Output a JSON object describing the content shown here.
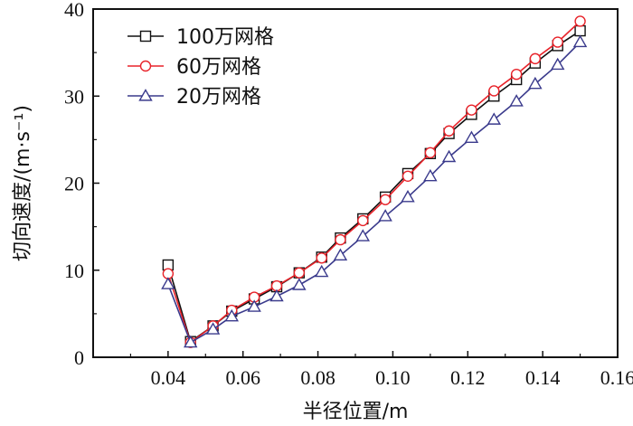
{
  "chart_data": {
    "type": "line",
    "xlabel": "半径位置/m",
    "ylabel": "切向速度/(m·s⁻¹)",
    "xlim": [
      0.02,
      0.16
    ],
    "ylim": [
      0,
      40
    ],
    "x_ticks": [
      "0.04",
      "0.06",
      "0.08",
      "0.10",
      "0.12",
      "0.14",
      "0.16"
    ],
    "y_ticks": [
      "0",
      "10",
      "20",
      "30",
      "40"
    ],
    "legend_position": "top-left",
    "x": [
      0.04,
      0.046,
      0.052,
      0.057,
      0.063,
      0.069,
      0.075,
      0.081,
      0.086,
      0.092,
      0.098,
      0.104,
      0.11,
      0.115,
      0.121,
      0.127,
      0.133,
      0.138,
      0.144,
      0.15
    ],
    "series": [
      {
        "name": "100万网格",
        "color": "#111111",
        "marker": "square",
        "values": [
          10.6,
          1.8,
          3.6,
          5.3,
          6.7,
          8.1,
          9.7,
          11.5,
          13.7,
          15.9,
          18.4,
          21.1,
          23.4,
          25.7,
          27.9,
          30.0,
          31.9,
          33.8,
          35.8,
          37.5
        ]
      },
      {
        "name": "60万网格",
        "color": "#e8232a",
        "marker": "circle",
        "values": [
          9.6,
          1.7,
          3.6,
          5.4,
          6.9,
          8.2,
          9.7,
          11.4,
          13.5,
          15.7,
          18.1,
          20.8,
          23.5,
          26.0,
          28.4,
          30.6,
          32.5,
          34.3,
          36.2,
          38.6
        ]
      },
      {
        "name": "20万网格",
        "color": "#3a3a8c",
        "marker": "triangle",
        "values": [
          8.4,
          1.7,
          3.2,
          4.7,
          5.8,
          7.0,
          8.3,
          9.8,
          11.7,
          13.9,
          16.2,
          18.4,
          20.8,
          23.0,
          25.2,
          27.3,
          29.4,
          31.4,
          33.6,
          36.2
        ]
      }
    ]
  }
}
